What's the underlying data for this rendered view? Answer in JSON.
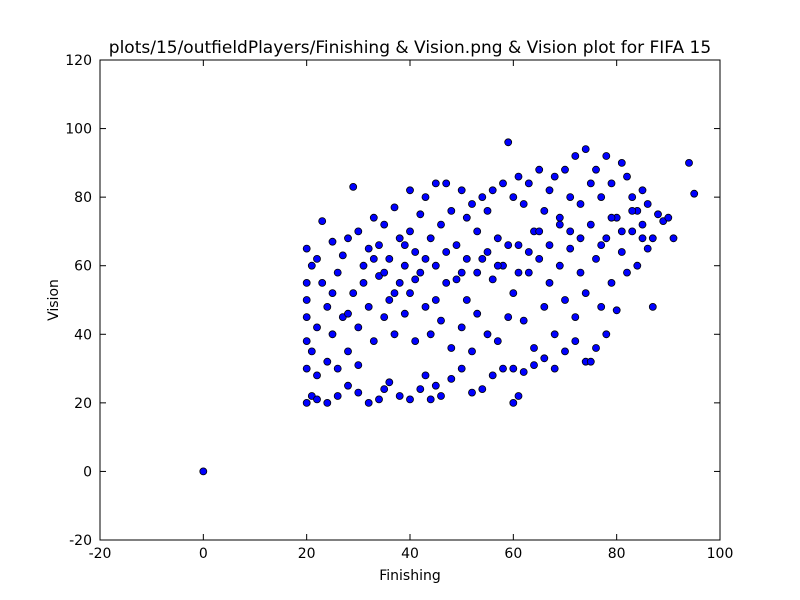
{
  "chart_data": {
    "type": "scatter",
    "title": "plots/15/outfieldPlayers/Finishing & Vision.png & Vision plot for FIFA 15",
    "xlabel": "Finishing",
    "ylabel": "Vision",
    "xlim": [
      -20,
      100
    ],
    "ylim": [
      -20,
      120
    ],
    "xticks": [
      -20,
      0,
      20,
      40,
      60,
      80,
      100
    ],
    "yticks": [
      -20,
      0,
      20,
      40,
      60,
      80,
      100,
      120
    ],
    "grid": false,
    "marker_color": "#0000ff",
    "marker_edge_color": "#000000",
    "series": [
      {
        "points": [
          [
            0,
            0
          ],
          [
            20,
            20
          ],
          [
            21,
            22
          ],
          [
            22,
            21
          ],
          [
            24,
            20
          ],
          [
            26,
            22
          ],
          [
            28,
            25
          ],
          [
            30,
            23
          ],
          [
            32,
            20
          ],
          [
            34,
            21
          ],
          [
            35,
            24
          ],
          [
            36,
            26
          ],
          [
            38,
            22
          ],
          [
            40,
            21
          ],
          [
            42,
            24
          ],
          [
            43,
            28
          ],
          [
            44,
            21
          ],
          [
            45,
            25
          ],
          [
            46,
            22
          ],
          [
            48,
            27
          ],
          [
            50,
            30
          ],
          [
            52,
            23
          ],
          [
            54,
            24
          ],
          [
            56,
            28
          ],
          [
            58,
            30
          ],
          [
            60,
            20
          ],
          [
            61,
            22
          ],
          [
            62,
            29
          ],
          [
            64,
            31
          ],
          [
            66,
            33
          ],
          [
            68,
            30
          ],
          [
            70,
            35
          ],
          [
            72,
            38
          ],
          [
            74,
            32
          ],
          [
            76,
            36
          ],
          [
            78,
            40
          ],
          [
            20,
            65
          ],
          [
            20,
            30
          ],
          [
            20,
            45
          ],
          [
            20,
            55
          ],
          [
            20,
            38
          ],
          [
            20,
            50
          ],
          [
            21,
            60
          ],
          [
            21,
            35
          ],
          [
            22,
            62
          ],
          [
            22,
            42
          ],
          [
            22,
            28
          ],
          [
            23,
            73
          ],
          [
            23,
            55
          ],
          [
            24,
            48
          ],
          [
            24,
            32
          ],
          [
            25,
            67
          ],
          [
            25,
            40
          ],
          [
            26,
            58
          ],
          [
            26,
            30
          ],
          [
            27,
            63
          ],
          [
            27,
            45
          ],
          [
            28,
            68
          ],
          [
            28,
            35
          ],
          [
            29,
            83
          ],
          [
            29,
            52
          ],
          [
            30,
            70
          ],
          [
            30,
            42
          ],
          [
            30,
            31
          ],
          [
            31,
            60
          ],
          [
            32,
            65
          ],
          [
            32,
            48
          ],
          [
            33,
            74
          ],
          [
            33,
            38
          ],
          [
            34,
            57
          ],
          [
            34,
            66
          ],
          [
            35,
            72
          ],
          [
            35,
            45
          ],
          [
            36,
            62
          ],
          [
            36,
            50
          ],
          [
            37,
            77
          ],
          [
            37,
            40
          ],
          [
            38,
            68
          ],
          [
            38,
            55
          ],
          [
            39,
            60
          ],
          [
            39,
            46
          ],
          [
            40,
            82
          ],
          [
            40,
            70
          ],
          [
            40,
            52
          ],
          [
            41,
            64
          ],
          [
            41,
            38
          ],
          [
            42,
            75
          ],
          [
            42,
            58
          ],
          [
            43,
            80
          ],
          [
            43,
            48
          ],
          [
            44,
            68
          ],
          [
            44,
            40
          ],
          [
            45,
            84
          ],
          [
            45,
            60
          ],
          [
            46,
            72
          ],
          [
            46,
            44
          ],
          [
            47,
            84
          ],
          [
            47,
            55
          ],
          [
            48,
            76
          ],
          [
            48,
            36
          ],
          [
            49,
            66
          ],
          [
            50,
            82
          ],
          [
            50,
            58
          ],
          [
            50,
            42
          ],
          [
            51,
            74
          ],
          [
            51,
            50
          ],
          [
            52,
            78
          ],
          [
            52,
            35
          ],
          [
            53,
            70
          ],
          [
            53,
            46
          ],
          [
            54,
            80
          ],
          [
            54,
            62
          ],
          [
            55,
            76
          ],
          [
            55,
            40
          ],
          [
            56,
            82
          ],
          [
            56,
            56
          ],
          [
            57,
            68
          ],
          [
            57,
            38
          ],
          [
            58,
            84
          ],
          [
            58,
            60
          ],
          [
            59,
            96
          ],
          [
            59,
            45
          ],
          [
            60,
            80
          ],
          [
            60,
            30
          ],
          [
            60,
            52
          ],
          [
            61,
            86
          ],
          [
            61,
            66
          ],
          [
            62,
            78
          ],
          [
            62,
            44
          ],
          [
            63,
            84
          ],
          [
            63,
            58
          ],
          [
            64,
            70
          ],
          [
            64,
            36
          ],
          [
            65,
            88
          ],
          [
            65,
            62
          ],
          [
            66,
            76
          ],
          [
            66,
            48
          ],
          [
            67,
            82
          ],
          [
            67,
            55
          ],
          [
            68,
            86
          ],
          [
            68,
            40
          ],
          [
            69,
            72
          ],
          [
            69,
            60
          ],
          [
            70,
            88
          ],
          [
            70,
            50
          ],
          [
            71,
            80
          ],
          [
            71,
            65
          ],
          [
            72,
            92
          ],
          [
            72,
            45
          ],
          [
            73,
            78
          ],
          [
            73,
            58
          ],
          [
            74,
            94
          ],
          [
            74,
            52
          ],
          [
            75,
            84
          ],
          [
            75,
            32
          ],
          [
            76,
            88
          ],
          [
            76,
            62
          ],
          [
            77,
            80
          ],
          [
            77,
            48
          ],
          [
            78,
            92
          ],
          [
            78,
            68
          ],
          [
            79,
            84
          ],
          [
            79,
            55
          ],
          [
            80,
            74
          ],
          [
            80,
            47
          ],
          [
            81,
            90
          ],
          [
            81,
            64
          ],
          [
            82,
            86
          ],
          [
            82,
            58
          ],
          [
            83,
            80
          ],
          [
            83,
            70
          ],
          [
            84,
            76
          ],
          [
            84,
            60
          ],
          [
            85,
            82
          ],
          [
            85,
            72
          ],
          [
            86,
            78
          ],
          [
            86,
            65
          ],
          [
            87,
            68
          ],
          [
            87,
            48
          ],
          [
            88,
            75
          ],
          [
            89,
            73
          ],
          [
            90,
            74
          ],
          [
            91,
            68
          ],
          [
            94,
            90
          ],
          [
            95,
            81
          ],
          [
            25,
            52
          ],
          [
            28,
            46
          ],
          [
            31,
            55
          ],
          [
            33,
            62
          ],
          [
            35,
            58
          ],
          [
            37,
            52
          ],
          [
            39,
            66
          ],
          [
            41,
            56
          ],
          [
            43,
            62
          ],
          [
            45,
            50
          ],
          [
            47,
            64
          ],
          [
            49,
            56
          ],
          [
            51,
            62
          ],
          [
            53,
            58
          ],
          [
            55,
            64
          ],
          [
            57,
            60
          ],
          [
            59,
            66
          ],
          [
            61,
            58
          ],
          [
            63,
            64
          ],
          [
            65,
            70
          ],
          [
            67,
            66
          ],
          [
            69,
            74
          ],
          [
            71,
            70
          ],
          [
            73,
            68
          ],
          [
            75,
            72
          ],
          [
            77,
            66
          ],
          [
            79,
            74
          ],
          [
            81,
            70
          ],
          [
            83,
            76
          ],
          [
            85,
            68
          ]
        ]
      }
    ]
  }
}
